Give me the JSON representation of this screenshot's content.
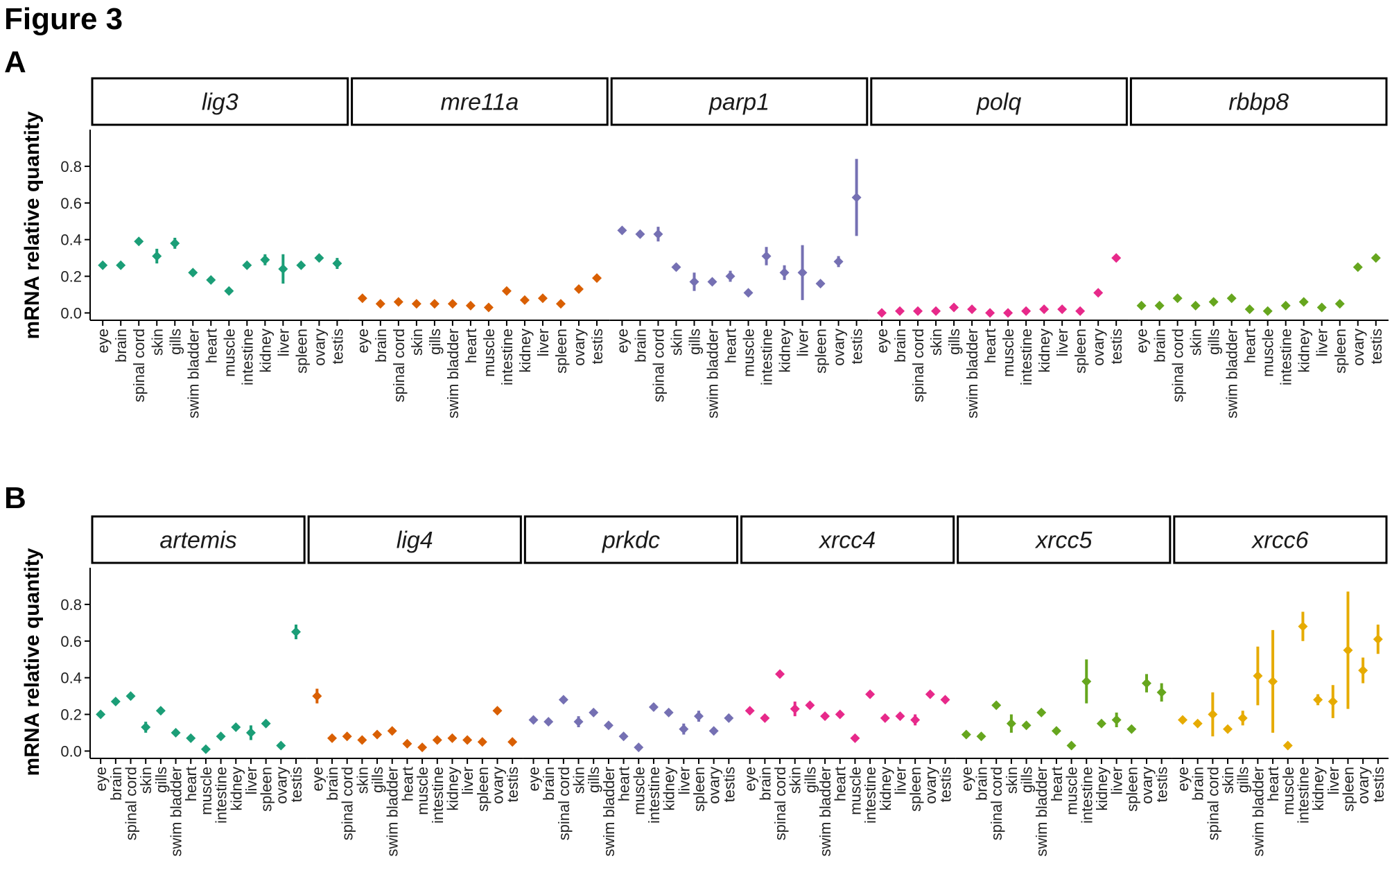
{
  "figure_title": "Figure 3",
  "panels": {
    "A": "A",
    "B": "B"
  },
  "chart_data": [
    {
      "type": "scatter",
      "panel": "A",
      "title": "",
      "xlabel": "",
      "ylabel": "mRNA relative quantity",
      "ylim": [
        -0.04,
        1.0
      ],
      "yticks": [
        0.0,
        0.2,
        0.4,
        0.6,
        0.8
      ],
      "ytick_labels": [
        "0.0",
        "0.2",
        "0.4",
        "0.6",
        "0.8"
      ],
      "facets": [
        {
          "gene": "lig3",
          "color": "#1b9e77",
          "categories": [
            "eye",
            "brain",
            "spinal cord",
            "skin",
            "gills",
            "swim bladder",
            "heart",
            "muscle",
            "intestine",
            "kidney",
            "liver",
            "spleen",
            "ovary",
            "testis"
          ],
          "values": [
            0.26,
            0.26,
            0.39,
            0.31,
            0.38,
            0.22,
            0.18,
            0.12,
            0.26,
            0.29,
            0.24,
            0.26,
            0.3,
            0.27
          ],
          "err": [
            0.01,
            0.01,
            0.01,
            0.04,
            0.03,
            0.01,
            0.01,
            0.01,
            0.01,
            0.03,
            0.08,
            0.01,
            0.01,
            0.03
          ]
        },
        {
          "gene": "mre11a",
          "color": "#d95f02",
          "categories": [
            "eye",
            "brain",
            "spinal cord",
            "skin",
            "gills",
            "swim bladder",
            "heart",
            "muscle",
            "intestine",
            "kidney",
            "liver",
            "spleen",
            "ovary",
            "testis"
          ],
          "values": [
            0.08,
            0.05,
            0.06,
            0.05,
            0.05,
            0.05,
            0.04,
            0.03,
            0.12,
            0.07,
            0.08,
            0.05,
            0.13,
            0.19
          ],
          "err": [
            0.01,
            0.01,
            0.01,
            0.01,
            0.01,
            0.01,
            0.01,
            0.01,
            0.01,
            0.01,
            0.01,
            0.01,
            0.01,
            0.01
          ]
        },
        {
          "gene": "parp1",
          "color": "#7570b3",
          "categories": [
            "eye",
            "brain",
            "spinal cord",
            "skin",
            "gills",
            "swim bladder",
            "heart",
            "muscle",
            "intestine",
            "kidney",
            "liver",
            "spleen",
            "ovary",
            "testis"
          ],
          "values": [
            0.45,
            0.43,
            0.43,
            0.25,
            0.17,
            0.17,
            0.2,
            0.11,
            0.31,
            0.22,
            0.22,
            0.16,
            0.28,
            0.63
          ],
          "err": [
            0.01,
            0.02,
            0.04,
            0.02,
            0.05,
            0.01,
            0.03,
            0.01,
            0.05,
            0.04,
            0.15,
            0.01,
            0.03,
            0.21
          ]
        },
        {
          "gene": "polq",
          "color": "#e7298a",
          "categories": [
            "eye",
            "brain",
            "spinal cord",
            "skin",
            "gills",
            "swim bladder",
            "heart",
            "muscle",
            "intestine",
            "kidney",
            "liver",
            "spleen",
            "ovary",
            "testis"
          ],
          "values": [
            0.0,
            0.01,
            0.01,
            0.01,
            0.03,
            0.02,
            0.0,
            0.0,
            0.01,
            0.02,
            0.02,
            0.01,
            0.11,
            0.3
          ],
          "err": [
            0.005,
            0.005,
            0.005,
            0.005,
            0.005,
            0.005,
            0.005,
            0.005,
            0.005,
            0.005,
            0.005,
            0.005,
            0.01,
            0.01
          ]
        },
        {
          "gene": "rbbp8",
          "color": "#66a61e",
          "categories": [
            "eye",
            "brain",
            "spinal cord",
            "skin",
            "gills",
            "swim bladder",
            "heart",
            "muscle",
            "intestine",
            "kidney",
            "liver",
            "spleen",
            "ovary",
            "testis"
          ],
          "values": [
            0.04,
            0.04,
            0.08,
            0.04,
            0.06,
            0.08,
            0.02,
            0.01,
            0.04,
            0.06,
            0.03,
            0.05,
            0.25,
            0.3
          ],
          "err": [
            0.005,
            0.005,
            0.005,
            0.005,
            0.005,
            0.005,
            0.005,
            0.005,
            0.005,
            0.005,
            0.005,
            0.005,
            0.01,
            0.01
          ]
        }
      ]
    },
    {
      "type": "scatter",
      "panel": "B",
      "title": "",
      "xlabel": "",
      "ylabel": "mRNA relative quantity",
      "ylim": [
        -0.04,
        1.0
      ],
      "yticks": [
        0.0,
        0.2,
        0.4,
        0.6,
        0.8
      ],
      "ytick_labels": [
        "0.0",
        "0.2",
        "0.4",
        "0.6",
        "0.8"
      ],
      "facets": [
        {
          "gene": "artemis",
          "color": "#1b9e77",
          "categories": [
            "eye",
            "brain",
            "spinal cord",
            "skin",
            "gills",
            "swim bladder",
            "heart",
            "muscle",
            "intestine",
            "kidney",
            "liver",
            "spleen",
            "ovary",
            "testis"
          ],
          "values": [
            0.2,
            0.27,
            0.3,
            0.13,
            0.22,
            0.1,
            0.07,
            0.01,
            0.08,
            0.13,
            0.1,
            0.15,
            0.03,
            0.65
          ],
          "err": [
            0.01,
            0.01,
            0.01,
            0.03,
            0.02,
            0.01,
            0.01,
            0.01,
            0.01,
            0.01,
            0.04,
            0.02,
            0.01,
            0.04
          ]
        },
        {
          "gene": "lig4",
          "color": "#d95f02",
          "categories": [
            "eye",
            "brain",
            "spinal cord",
            "skin",
            "gills",
            "swim bladder",
            "heart",
            "muscle",
            "intestine",
            "kidney",
            "liver",
            "spleen",
            "ovary",
            "testis"
          ],
          "values": [
            0.3,
            0.07,
            0.08,
            0.06,
            0.09,
            0.11,
            0.04,
            0.02,
            0.06,
            0.07,
            0.06,
            0.05,
            0.22,
            0.05
          ],
          "err": [
            0.04,
            0.01,
            0.01,
            0.01,
            0.01,
            0.01,
            0.01,
            0.01,
            0.01,
            0.01,
            0.01,
            0.01,
            0.01,
            0.01
          ]
        },
        {
          "gene": "prkdc",
          "color": "#7570b3",
          "categories": [
            "eye",
            "brain",
            "spinal cord",
            "skin",
            "gills",
            "swim bladder",
            "heart",
            "muscle",
            "intestine",
            "kidney",
            "liver",
            "spleen",
            "ovary",
            "testis"
          ],
          "values": [
            0.17,
            0.16,
            0.28,
            0.16,
            0.21,
            0.14,
            0.08,
            0.02,
            0.24,
            0.21,
            0.12,
            0.19,
            0.11,
            0.18
          ],
          "err": [
            0.01,
            0.01,
            0.01,
            0.03,
            0.01,
            0.01,
            0.01,
            0.01,
            0.02,
            0.01,
            0.03,
            0.03,
            0.01,
            0.02
          ]
        },
        {
          "gene": "xrcc4",
          "color": "#e7298a",
          "categories": [
            "eye",
            "brain",
            "spinal cord",
            "skin",
            "gills",
            "swim bladder",
            "heart",
            "muscle",
            "intestine",
            "kidney",
            "liver",
            "spleen",
            "ovary",
            "testis"
          ],
          "values": [
            0.22,
            0.18,
            0.42,
            0.23,
            0.25,
            0.19,
            0.2,
            0.07,
            0.31,
            0.18,
            0.19,
            0.17,
            0.31,
            0.28
          ],
          "err": [
            0.01,
            0.01,
            0.02,
            0.04,
            0.01,
            0.01,
            0.01,
            0.01,
            0.01,
            0.01,
            0.01,
            0.03,
            0.01,
            0.02
          ]
        },
        {
          "gene": "xrcc5",
          "color": "#66a61e",
          "categories": [
            "eye",
            "brain",
            "spinal cord",
            "skin",
            "gills",
            "swim bladder",
            "heart",
            "muscle",
            "intestine",
            "kidney",
            "liver",
            "spleen",
            "ovary",
            "testis"
          ],
          "values": [
            0.09,
            0.08,
            0.25,
            0.15,
            0.14,
            0.21,
            0.11,
            0.03,
            0.38,
            0.15,
            0.17,
            0.12,
            0.37,
            0.32
          ],
          "err": [
            0.01,
            0.01,
            0.01,
            0.05,
            0.01,
            0.01,
            0.01,
            0.01,
            0.12,
            0.01,
            0.04,
            0.01,
            0.05,
            0.05
          ]
        },
        {
          "gene": "xrcc6",
          "color": "#e6ab02",
          "categories": [
            "eye",
            "brain",
            "spinal cord",
            "skin",
            "gills",
            "swim bladder",
            "heart",
            "muscle",
            "intestine",
            "kidney",
            "liver",
            "spleen",
            "ovary",
            "testis"
          ],
          "values": [
            0.17,
            0.15,
            0.2,
            0.12,
            0.18,
            0.41,
            0.38,
            0.03,
            0.68,
            0.28,
            0.27,
            0.55,
            0.44,
            0.61
          ],
          "err": [
            0.01,
            0.01,
            0.12,
            0.01,
            0.04,
            0.16,
            0.28,
            0.01,
            0.08,
            0.03,
            0.09,
            0.32,
            0.07,
            0.08
          ]
        }
      ]
    }
  ]
}
